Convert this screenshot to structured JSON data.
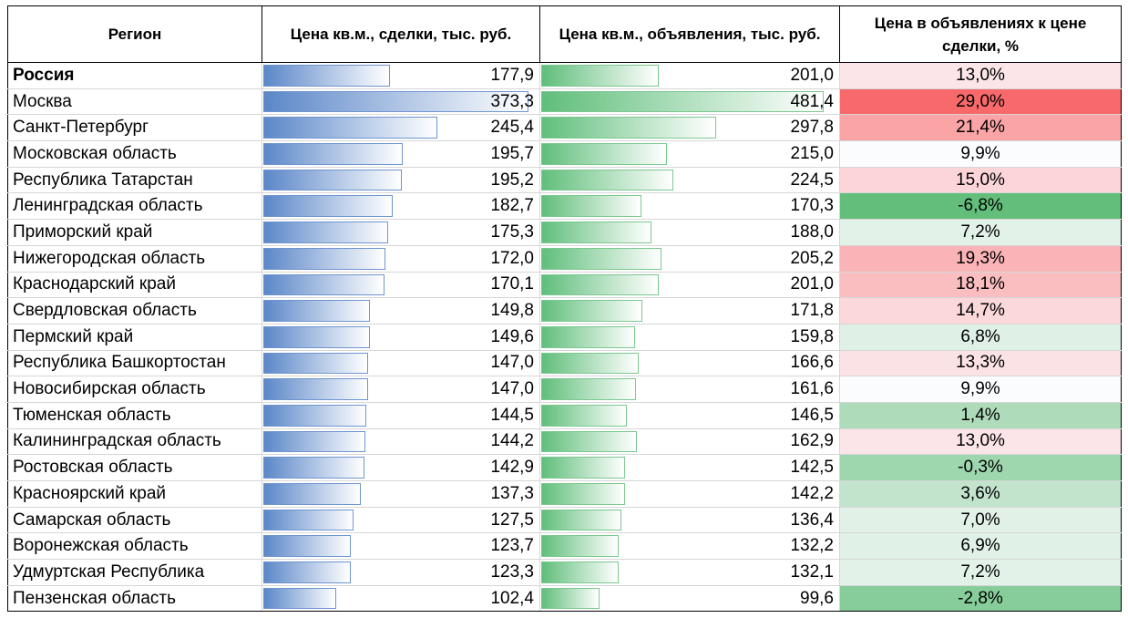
{
  "headers": {
    "region": "Регион",
    "deal": "Цена кв.м., сделки, тыс. руб.",
    "listing": "Цена кв.м., объявления, тыс. руб.",
    "ratio": "Цена в объявлениях к цене сделки, %"
  },
  "colors": {
    "deal_bar": "#5b87c8",
    "listing_bar": "#60be7b",
    "pct_positive": "#f8696b",
    "pct_negative": "#63be7b"
  },
  "rows": [
    {
      "region": "Россия",
      "deal": "177,9",
      "listing": "201,0",
      "ratio": "13,0%",
      "bold": true
    },
    {
      "region": "Москва",
      "deal": "373,3",
      "listing": "481,4",
      "ratio": "29,0%"
    },
    {
      "region": "Санкт-Петербург",
      "deal": "245,4",
      "listing": "297,8",
      "ratio": "21,4%"
    },
    {
      "region": "Московская область",
      "deal": "195,7",
      "listing": "215,0",
      "ratio": "9,9%"
    },
    {
      "region": "Республика Татарстан",
      "deal": "195,2",
      "listing": "224,5",
      "ratio": "15,0%"
    },
    {
      "region": "Ленинградская область",
      "deal": "182,7",
      "listing": "170,3",
      "ratio": "-6,8%"
    },
    {
      "region": "Приморский край",
      "deal": "175,3",
      "listing": "188,0",
      "ratio": "7,2%"
    },
    {
      "region": "Нижегородская область",
      "deal": "172,0",
      "listing": "205,2",
      "ratio": "19,3%"
    },
    {
      "region": "Краснодарский край",
      "deal": "170,1",
      "listing": "201,0",
      "ratio": "18,1%"
    },
    {
      "region": "Свердловская область",
      "deal": "149,8",
      "listing": "171,8",
      "ratio": "14,7%"
    },
    {
      "region": "Пермский край",
      "deal": "149,6",
      "listing": "159,8",
      "ratio": "6,8%"
    },
    {
      "region": "Республика Башкортостан",
      "deal": "147,0",
      "listing": "166,6",
      "ratio": "13,3%"
    },
    {
      "region": "Новосибирская область",
      "deal": "147,0",
      "listing": "161,6",
      "ratio": "9,9%"
    },
    {
      "region": "Тюменская область",
      "deal": "144,5",
      "listing": "146,5",
      "ratio": "1,4%"
    },
    {
      "region": "Калининградская область",
      "deal": "144,2",
      "listing": "162,9",
      "ratio": "13,0%"
    },
    {
      "region": "Ростовская область",
      "deal": "142,9",
      "listing": "142,5",
      "ratio": "-0,3%"
    },
    {
      "region": "Красноярский край",
      "deal": "137,3",
      "listing": "142,2",
      "ratio": "3,6%"
    },
    {
      "region": "Самарская область",
      "deal": "127,5",
      "listing": "136,4",
      "ratio": "7,0%"
    },
    {
      "region": "Воронежская область",
      "deal": "123,7",
      "listing": "132,2",
      "ratio": "6,9%"
    },
    {
      "region": "Удмуртская Республика",
      "deal": "123,3",
      "listing": "132,1",
      "ratio": "7,2%"
    },
    {
      "region": "Пензенская область",
      "deal": "102,4",
      "listing": "99,6",
      "ratio": "-2,8%"
    }
  ]
}
